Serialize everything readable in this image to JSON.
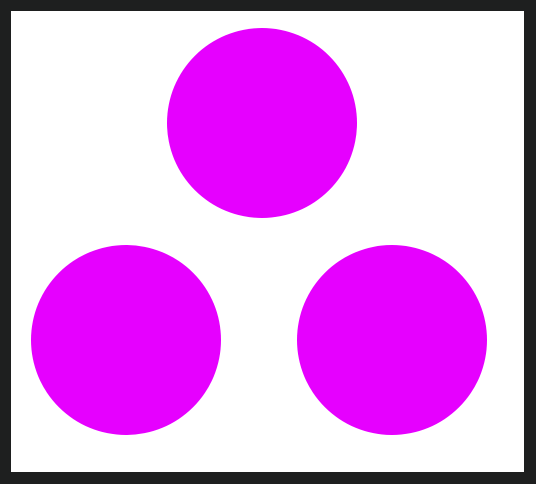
{
  "colors": {
    "frame": "#1e1f1f",
    "canvas": "#ffffff",
    "shape_fill": "#e600ff"
  },
  "shapes": [
    {
      "name": "top-circle",
      "kind": "circle"
    },
    {
      "name": "bottom-left-circle",
      "kind": "circle"
    },
    {
      "name": "bottom-right-circle",
      "kind": "circle"
    }
  ]
}
